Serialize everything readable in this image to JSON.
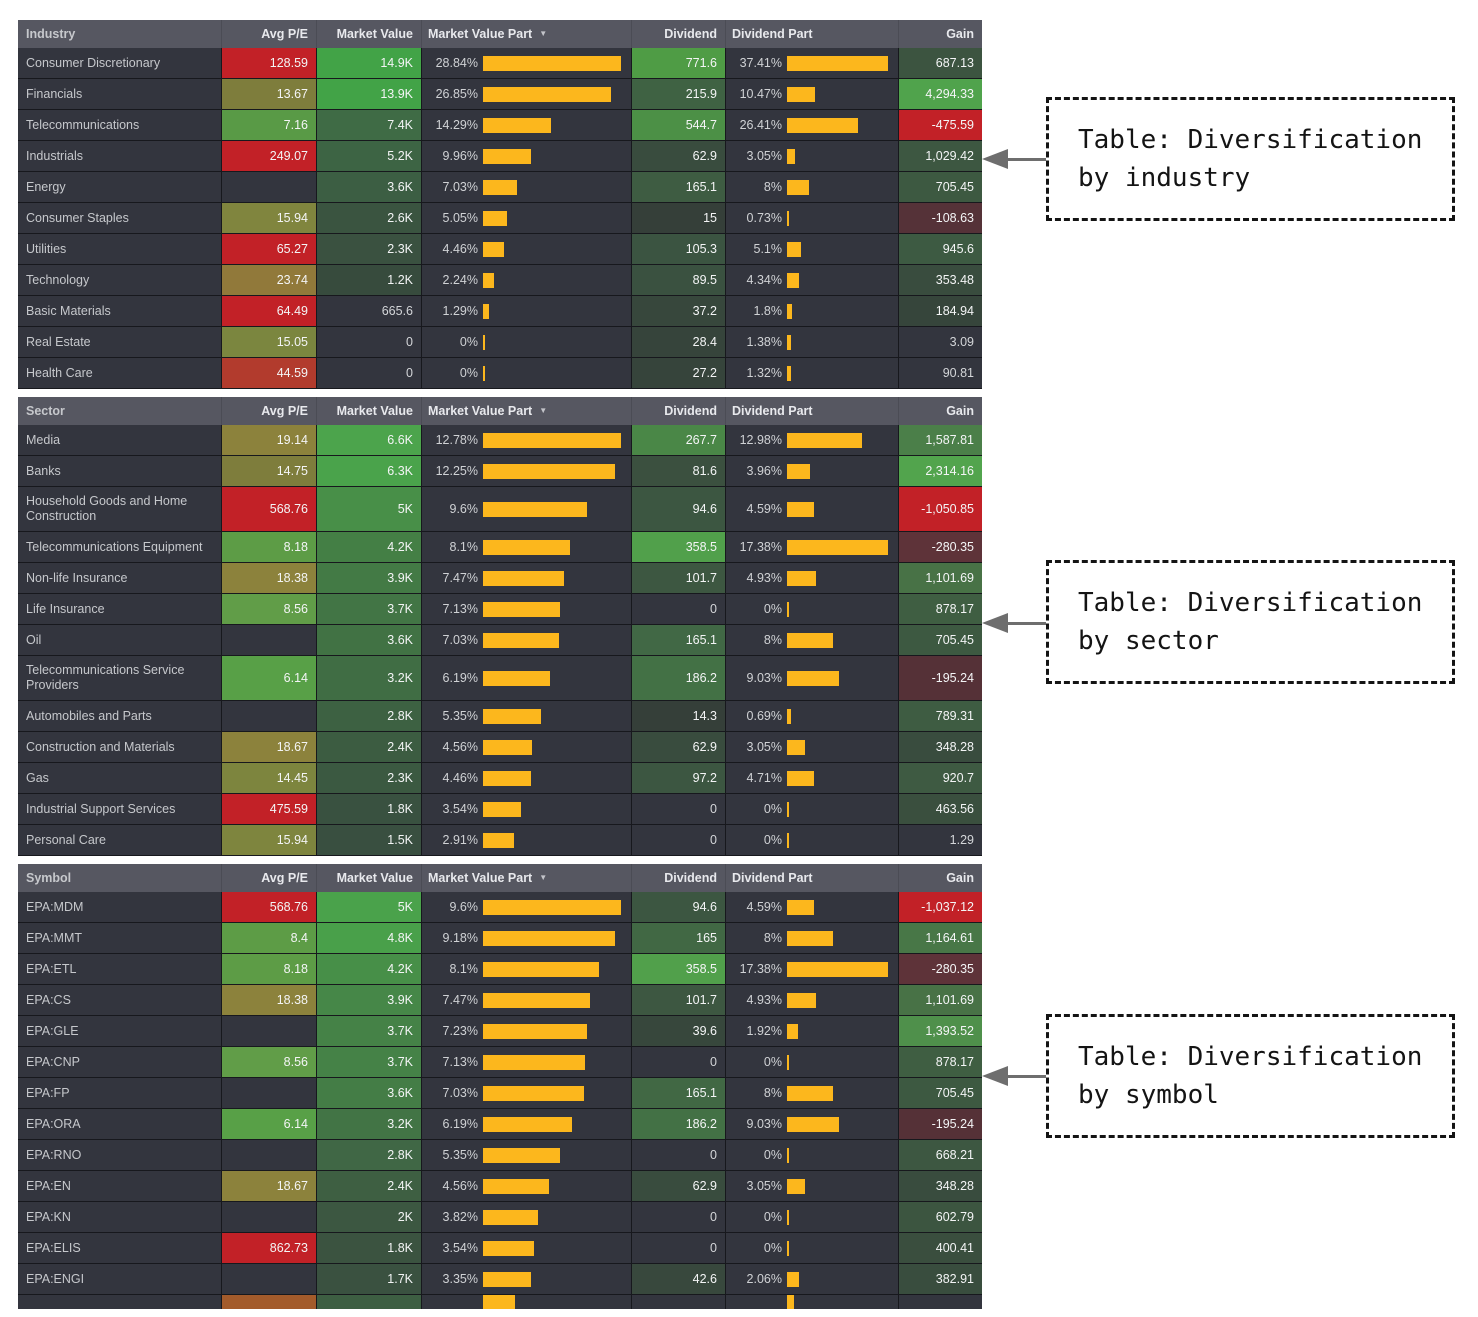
{
  "palette": {
    "page_bg": "#ffffff",
    "row_bg": "#33353e",
    "header_bg": "#565761",
    "divider": "#17181d",
    "bar_yellow": "#fcb71d",
    "bright_red": "#c22127",
    "bright_green": "#50a34c",
    "dark_maroon": "#5e3339",
    "olive": "#8c823c",
    "annotation_arrow": "#6e6e6e"
  },
  "annotations": [
    {
      "line1": "Table: Diversification",
      "line2": "by industry"
    },
    {
      "line1": "Table: Diversification",
      "line2": "by sector"
    },
    {
      "line1": "Table: Diversification",
      "line2": "by symbol"
    }
  ],
  "tables": [
    {
      "id": "industry",
      "headers": {
        "name": "Industry",
        "pe": "Avg P/E",
        "mv": "Market Value",
        "mvp": "Market Value Part",
        "div": "Dividend",
        "divp": "Dividend Part",
        "gain": "Gain"
      },
      "sort_indicator": "▼",
      "mvp_max": 28.84,
      "divp_max": 37.41,
      "rows": [
        {
          "name": "Consumer Discretionary",
          "pe": "128.59",
          "pe_bg": "#c22127",
          "mv": "14.9K",
          "mv_bg": "#42a347",
          "mvp": "28.84%",
          "mvp_v": 28.84,
          "div": "771.6",
          "div_bg": "#4f9c45",
          "divp": "37.41%",
          "divp_v": 37.41,
          "gain": "687.13",
          "gain_bg": "#3c5440"
        },
        {
          "name": "Financials",
          "pe": "13.67",
          "pe_bg": "#7e7d3c",
          "mv": "13.9K",
          "mv_bg": "#42a347",
          "mvp": "26.85%",
          "mvp_v": 26.85,
          "div": "215.9",
          "div_bg": "#3f6243",
          "divp": "10.47%",
          "divp_v": 10.47,
          "gain": "4,294.33",
          "gain_bg": "#50a34c"
        },
        {
          "name": "Telecommunications",
          "pe": "7.16",
          "pe_bg": "#599a46",
          "mv": "7.4K",
          "mv_bg": "#3f6b45",
          "mvp": "14.29%",
          "mvp_v": 14.29,
          "div": "544.7",
          "div_bg": "#4c9046",
          "divp": "26.41%",
          "divp_v": 26.41,
          "gain": "-475.59",
          "gain_bg": "#c22127"
        },
        {
          "name": "Industrials",
          "pe": "249.07",
          "pe_bg": "#c22127",
          "mv": "5.2K",
          "mv_bg": "#3d6444",
          "mvp": "9.96%",
          "mvp_v": 9.96,
          "div": "62.9",
          "div_bg": "#394c3e",
          "divp": "3.05%",
          "divp_v": 3.05,
          "gain": "1,029.42",
          "gain_bg": "#3d5741"
        },
        {
          "name": "Energy",
          "pe": "",
          "pe_bg": "",
          "mv": "3.6K",
          "mv_bg": "#3c5e43",
          "mvp": "7.03%",
          "mvp_v": 7.03,
          "div": "165.1",
          "div_bg": "#3e5c42",
          "divp": "8%",
          "divp_v": 8,
          "gain": "705.45",
          "gain_bg": "#3d5941"
        },
        {
          "name": "Consumer Staples",
          "pe": "15.94",
          "pe_bg": "#80853e",
          "mv": "2.6K",
          "mv_bg": "#3a5440",
          "mvp": "5.05%",
          "mvp_v": 5.05,
          "div": "15",
          "div_bg": "#353f39",
          "divp": "0.73%",
          "divp_v": 0.73,
          "gain": "-108.63",
          "gain_bg": "#553238"
        },
        {
          "name": "Utilities",
          "pe": "65.27",
          "pe_bg": "#c22127",
          "mv": "2.3K",
          "mv_bg": "#3a5140",
          "mvp": "4.46%",
          "mvp_v": 4.46,
          "div": "105.3",
          "div_bg": "#3b5441",
          "divp": "5.1%",
          "divp_v": 5.1,
          "gain": "945.6",
          "gain_bg": "#3d5a42"
        },
        {
          "name": "Technology",
          "pe": "23.74",
          "pe_bg": "#91793a",
          "mv": "1.2K",
          "mv_bg": "#374b3d",
          "mvp": "2.24%",
          "mvp_v": 2.24,
          "div": "89.5",
          "div_bg": "#3a5140",
          "divp": "4.34%",
          "divp_v": 4.34,
          "gain": "353.48",
          "gain_bg": "#394c3e"
        },
        {
          "name": "Basic Materials",
          "pe": "64.49",
          "pe_bg": "#c22127",
          "mv": "665.6",
          "mv_bg": "",
          "mvp": "1.29%",
          "mvp_v": 1.29,
          "div": "37.2",
          "div_bg": "#37473c",
          "divp": "1.8%",
          "divp_v": 1.8,
          "gain": "184.94",
          "gain_bg": "#36453b"
        },
        {
          "name": "Real Estate",
          "pe": "15.05",
          "pe_bg": "#7b863f",
          "mv": "0",
          "mv_bg": "",
          "mvp": "0%",
          "mvp_v": 0,
          "div": "28.4",
          "div_bg": "#36443b",
          "divp": "1.38%",
          "divp_v": 1.38,
          "gain": "3.09",
          "gain_bg": ""
        },
        {
          "name": "Health Care",
          "pe": "44.59",
          "pe_bg": "#b23b2d",
          "mv": "0",
          "mv_bg": "",
          "mvp": "0%",
          "mvp_v": 0,
          "div": "27.2",
          "div_bg": "#36443b",
          "divp": "1.32%",
          "divp_v": 1.32,
          "gain": "90.81",
          "gain_bg": ""
        }
      ]
    },
    {
      "id": "sector",
      "headers": {
        "name": "Sector",
        "pe": "Avg P/E",
        "mv": "Market Value",
        "mvp": "Market Value Part",
        "div": "Dividend",
        "divp": "Dividend Part",
        "gain": "Gain"
      },
      "sort_indicator": "▼",
      "mvp_max": 12.78,
      "divp_max": 17.38,
      "rows": [
        {
          "name": "Media",
          "pe": "19.14",
          "pe_bg": "#8c823c",
          "mv": "6.6K",
          "mv_bg": "#4ca44c",
          "mvp": "12.78%",
          "mvp_v": 12.78,
          "div": "267.7",
          "div_bg": "#4a8747",
          "divp": "12.98%",
          "divp_v": 12.98,
          "gain": "1,587.81",
          "gain_bg": "#4b7f49"
        },
        {
          "name": "Banks",
          "pe": "14.75",
          "pe_bg": "#7e7d3c",
          "mv": "6.3K",
          "mv_bg": "#4aa34b",
          "mvp": "12.25%",
          "mvp_v": 12.25,
          "div": "81.6",
          "div_bg": "#3b503f",
          "divp": "3.96%",
          "divp_v": 3.96,
          "gain": "2,314.16",
          "gain_bg": "#52a44d"
        },
        {
          "name": "Household Goods and Home Construction",
          "pe": "568.76",
          "pe_bg": "#c22127",
          "mv": "5K",
          "mv_bg": "#488f48",
          "mvp": "9.6%",
          "mvp_v": 9.6,
          "div": "94.6",
          "div_bg": "#3c5641",
          "divp": "4.59%",
          "divp_v": 4.59,
          "gain": "-1,050.85",
          "gain_bg": "#c22127"
        },
        {
          "name": "Telecommunications Equipment",
          "pe": "8.18",
          "pe_bg": "#5d9c46",
          "mv": "4.2K",
          "mv_bg": "#447f45",
          "mvp": "8.1%",
          "mvp_v": 8.1,
          "div": "358.5",
          "div_bg": "#51a04b",
          "divp": "17.38%",
          "divp_v": 17.38,
          "gain": "-280.35",
          "gain_bg": "#5e3339"
        },
        {
          "name": "Non-life Insurance",
          "pe": "18.38",
          "pe_bg": "#8c823c",
          "mv": "3.9K",
          "mv_bg": "#437a45",
          "mvp": "7.47%",
          "mvp_v": 7.47,
          "div": "101.7",
          "div_bg": "#3d5741",
          "divp": "4.93%",
          "divp_v": 4.93,
          "gain": "1,101.69",
          "gain_bg": "#487246"
        },
        {
          "name": "Life Insurance",
          "pe": "8.56",
          "pe_bg": "#619d48",
          "mv": "3.7K",
          "mv_bg": "#427545",
          "mvp": "7.13%",
          "mvp_v": 7.13,
          "div": "0",
          "div_bg": "",
          "divp": "0%",
          "divp_v": 0,
          "gain": "878.17",
          "gain_bg": "#3f5e42"
        },
        {
          "name": "Oil",
          "pe": "",
          "pe_bg": "",
          "mv": "3.6K",
          "mv_bg": "#417244",
          "mvp": "7.03%",
          "mvp_v": 7.03,
          "div": "165.1",
          "div_bg": "#416845",
          "divp": "8%",
          "divp_v": 8,
          "gain": "705.45",
          "gain_bg": "#3d5941"
        },
        {
          "name": "Telecommunications Service Providers",
          "pe": "6.14",
          "pe_bg": "#58a047",
          "mv": "3.2K",
          "mv_bg": "#406d44",
          "mvp": "6.19%",
          "mvp_v": 6.19,
          "div": "186.2",
          "div_bg": "#437145",
          "divp": "9.03%",
          "divp_v": 9.03,
          "gain": "-195.24",
          "gain_bg": "#553137"
        },
        {
          "name": "Automobiles and Parts",
          "pe": "",
          "pe_bg": "",
          "mv": "2.8K",
          "mv_bg": "#3d6142",
          "mvp": "5.35%",
          "mvp_v": 5.35,
          "div": "14.3",
          "div_bg": "#353f39",
          "divp": "0.69%",
          "divp_v": 0.69,
          "gain": "789.31",
          "gain_bg": "#3e5c42"
        },
        {
          "name": "Construction and Materials",
          "pe": "18.67",
          "pe_bg": "#8c823c",
          "mv": "2.4K",
          "mv_bg": "#3c5c41",
          "mvp": "4.56%",
          "mvp_v": 4.56,
          "div": "62.9",
          "div_bg": "#394c3e",
          "divp": "3.05%",
          "divp_v": 3.05,
          "gain": "348.28",
          "gain_bg": "#394c3e"
        },
        {
          "name": "Gas",
          "pe": "14.45",
          "pe_bg": "#7d853e",
          "mv": "2.3K",
          "mv_bg": "#3b5941",
          "mvp": "4.46%",
          "mvp_v": 4.46,
          "div": "97.2",
          "div_bg": "#3c5641",
          "divp": "4.71%",
          "divp_v": 4.71,
          "gain": "920.7",
          "gain_bg": "#3e5a42"
        },
        {
          "name": "Industrial Support Services",
          "pe": "475.59",
          "pe_bg": "#c22127",
          "mv": "1.8K",
          "mv_bg": "#395140",
          "mvp": "3.54%",
          "mvp_v": 3.54,
          "div": "0",
          "div_bg": "",
          "divp": "0%",
          "divp_v": 0,
          "gain": "463.56",
          "gain_bg": "#3a4f3e"
        },
        {
          "name": "Personal Care",
          "pe": "15.94",
          "pe_bg": "#7e853e",
          "mv": "1.5K",
          "mv_bg": "#394f40",
          "mvp": "2.91%",
          "mvp_v": 2.91,
          "div": "0",
          "div_bg": "",
          "divp": "0%",
          "divp_v": 0,
          "gain": "1.29",
          "gain_bg": ""
        }
      ]
    },
    {
      "id": "symbol",
      "headers": {
        "name": "Symbol",
        "pe": "Avg P/E",
        "mv": "Market Value",
        "mvp": "Market Value Part",
        "div": "Dividend",
        "divp": "Dividend Part",
        "gain": "Gain"
      },
      "sort_indicator": "▼",
      "mvp_max": 9.6,
      "divp_max": 17.38,
      "rows": [
        {
          "name": "EPA:MDM",
          "pe": "568.76",
          "pe_bg": "#c22127",
          "mv": "5K",
          "mv_bg": "#4aa24b",
          "mvp": "9.6%",
          "mvp_v": 9.6,
          "div": "94.6",
          "div_bg": "#3c5641",
          "divp": "4.59%",
          "divp_v": 4.59,
          "gain": "-1,037.12",
          "gain_bg": "#c22127"
        },
        {
          "name": "EPA:MMT",
          "pe": "8.4",
          "pe_bg": "#5d9c46",
          "mv": "4.8K",
          "mv_bg": "#49a04a",
          "mvp": "9.18%",
          "mvp_v": 9.18,
          "div": "165",
          "div_bg": "#416844",
          "divp": "8%",
          "divp_v": 8,
          "gain": "1,164.61",
          "gain_bg": "#487747"
        },
        {
          "name": "EPA:ETL",
          "pe": "8.18",
          "pe_bg": "#5d9c46",
          "mv": "4.2K",
          "mv_bg": "#478f48",
          "mvp": "8.1%",
          "mvp_v": 8.1,
          "div": "358.5",
          "div_bg": "#51a04b",
          "divp": "17.38%",
          "divp_v": 17.38,
          "gain": "-280.35",
          "gain_bg": "#5e3339"
        },
        {
          "name": "EPA:CS",
          "pe": "18.38",
          "pe_bg": "#8c823c",
          "mv": "3.9K",
          "mv_bg": "#468748",
          "mvp": "7.47%",
          "mvp_v": 7.47,
          "div": "101.7",
          "div_bg": "#3d5741",
          "divp": "4.93%",
          "divp_v": 4.93,
          "gain": "1,101.69",
          "gain_bg": "#487246"
        },
        {
          "name": "EPA:GLE",
          "pe": "",
          "pe_bg": "",
          "mv": "3.7K",
          "mv_bg": "#458247",
          "mvp": "7.23%",
          "mvp_v": 7.23,
          "div": "39.6",
          "div_bg": "#37473c",
          "divp": "1.92%",
          "divp_v": 1.92,
          "gain": "1,393.52",
          "gain_bg": "#4f904b"
        },
        {
          "name": "EPA:CNP",
          "pe": "8.56",
          "pe_bg": "#619d48",
          "mv": "3.7K",
          "mv_bg": "#458247",
          "mvp": "7.13%",
          "mvp_v": 7.13,
          "div": "0",
          "div_bg": "",
          "divp": "0%",
          "divp_v": 0,
          "gain": "878.17",
          "gain_bg": "#3f5e42"
        },
        {
          "name": "EPA:FP",
          "pe": "",
          "pe_bg": "",
          "mv": "3.6K",
          "mv_bg": "#447d46",
          "mvp": "7.03%",
          "mvp_v": 7.03,
          "div": "165.1",
          "div_bg": "#416844",
          "divp": "8%",
          "divp_v": 8,
          "gain": "705.45",
          "gain_bg": "#3d5941"
        },
        {
          "name": "EPA:ORA",
          "pe": "6.14",
          "pe_bg": "#58a047",
          "mv": "3.2K",
          "mv_bg": "#427445",
          "mvp": "6.19%",
          "mvp_v": 6.19,
          "div": "186.2",
          "div_bg": "#437145",
          "divp": "9.03%",
          "divp_v": 9.03,
          "gain": "-195.24",
          "gain_bg": "#553137"
        },
        {
          "name": "EPA:RNO",
          "pe": "",
          "pe_bg": "",
          "mv": "2.8K",
          "mv_bg": "#406745",
          "mvp": "5.35%",
          "mvp_v": 5.35,
          "div": "0",
          "div_bg": "",
          "divp": "0%",
          "divp_v": 0,
          "gain": "668.21",
          "gain_bg": "#3d5741"
        },
        {
          "name": "EPA:EN",
          "pe": "18.67",
          "pe_bg": "#8c823c",
          "mv": "2.4K",
          "mv_bg": "#3e5f42",
          "mvp": "4.56%",
          "mvp_v": 4.56,
          "div": "62.9",
          "div_bg": "#394c3e",
          "divp": "3.05%",
          "divp_v": 3.05,
          "gain": "348.28",
          "gain_bg": "#394c3e"
        },
        {
          "name": "EPA:KN",
          "pe": "",
          "pe_bg": "",
          "mv": "2K",
          "mv_bg": "#3c5741",
          "mvp": "3.82%",
          "mvp_v": 3.82,
          "div": "0",
          "div_bg": "",
          "divp": "0%",
          "divp_v": 0,
          "gain": "602.79",
          "gain_bg": "#3c5540"
        },
        {
          "name": "EPA:ELIS",
          "pe": "862.73",
          "pe_bg": "#c22127",
          "mv": "1.8K",
          "mv_bg": "#3b5340",
          "mvp": "3.54%",
          "mvp_v": 3.54,
          "div": "0",
          "div_bg": "",
          "divp": "0%",
          "divp_v": 0,
          "gain": "400.41",
          "gain_bg": "#3a4e3e"
        },
        {
          "name": "EPA:ENGI",
          "pe": "",
          "pe_bg": "",
          "mv": "1.7K",
          "mv_bg": "#3a5140",
          "mvp": "3.35%",
          "mvp_v": 3.35,
          "div": "42.6",
          "div_bg": "#38483d",
          "divp": "2.06%",
          "divp_v": 2.06,
          "gain": "382.91",
          "gain_bg": "#394d3e"
        },
        {
          "name": "",
          "pe": "",
          "pe_bg": "#a35b2b",
          "mv": "",
          "mv_bg": "#3d5e42",
          "mvp": "",
          "mvp_v": 2.2,
          "div": "",
          "div_bg": "",
          "divp": "",
          "divp_v": 1.2,
          "gain": "",
          "gain_bg": "",
          "clip": true
        }
      ]
    }
  ]
}
